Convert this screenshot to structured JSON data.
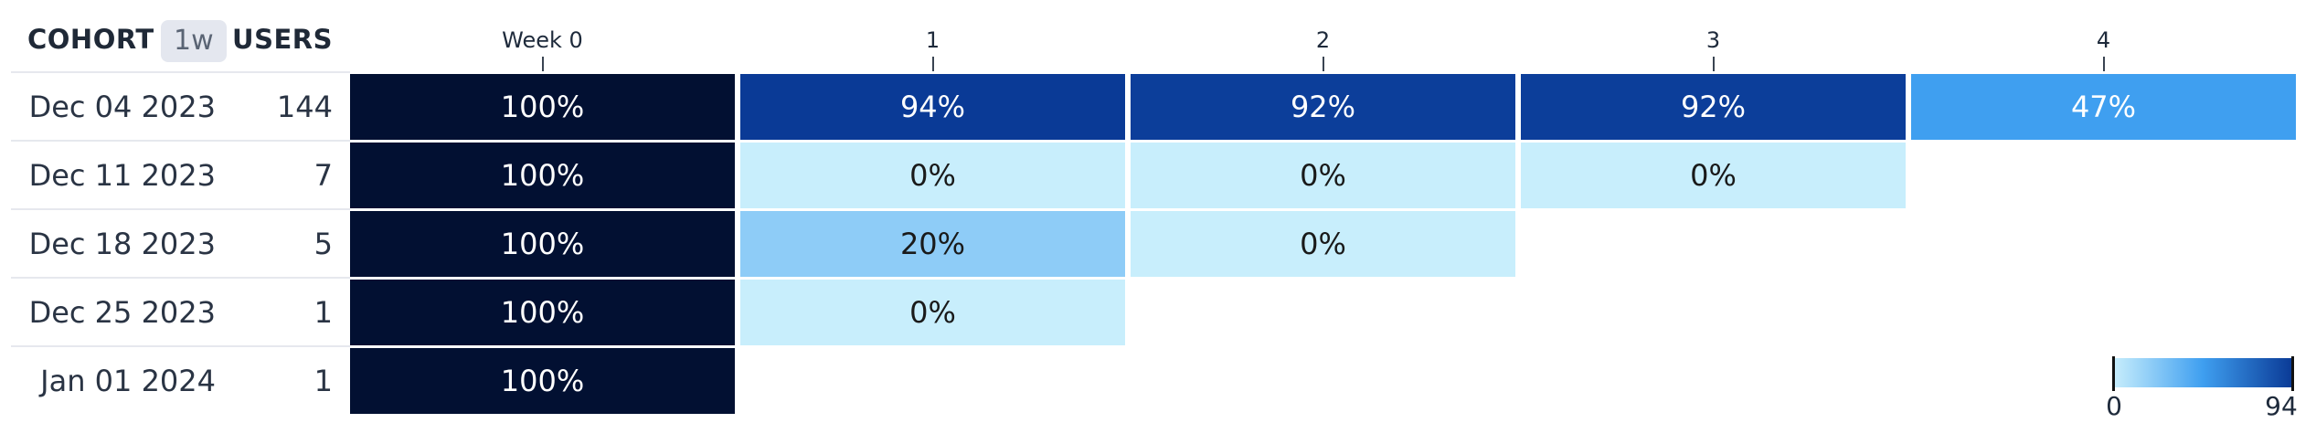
{
  "header": {
    "cohort_label": "COHORT",
    "interval_badge": "1w",
    "users_label": "USERS"
  },
  "periods": [
    "Week 0",
    "1",
    "2",
    "3",
    "4"
  ],
  "cohorts": [
    {
      "date": "Dec 04 2023",
      "users": "144"
    },
    {
      "date": "Dec 11 2023",
      "users": "7"
    },
    {
      "date": "Dec 18 2023",
      "users": "5"
    },
    {
      "date": "Dec 25 2023",
      "users": "1"
    },
    {
      "date": "Jan 01 2024",
      "users": "1"
    }
  ],
  "colors": {
    "week0": "#021032",
    "scale_low": "#c8eefc",
    "scale_mid": "#3f9ff0",
    "scale_high": "#0a3a96"
  },
  "legend": {
    "min_label": "0",
    "max_label": "94"
  },
  "chart_data": {
    "type": "heatmap",
    "title": "",
    "x_categories": [
      "Week 0",
      "1",
      "2",
      "3",
      "4"
    ],
    "y_categories": [
      "Dec 04 2023",
      "Dec 11 2023",
      "Dec 18 2023",
      "Dec 25 2023",
      "Jan 01 2024"
    ],
    "users": [
      144,
      7,
      5,
      1,
      1
    ],
    "values": [
      [
        100,
        94,
        92,
        92,
        47
      ],
      [
        100,
        0,
        0,
        0,
        null
      ],
      [
        100,
        20,
        0,
        null,
        null
      ],
      [
        100,
        0,
        null,
        null,
        null
      ],
      [
        100,
        null,
        null,
        null,
        null
      ]
    ],
    "unit": "%",
    "color_scale": {
      "min": 0,
      "max": 94
    },
    "legend_placement": "bottom-right",
    "grid": false
  }
}
